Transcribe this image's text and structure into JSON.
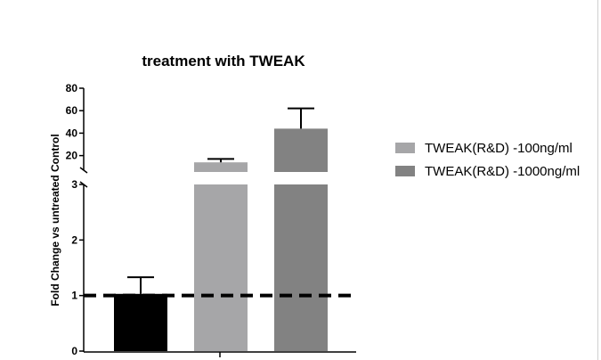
{
  "chart_data": {
    "type": "bar",
    "title": "treatment with TWEAK",
    "ylabel": "Fold Change vs untreated Control",
    "xlabel": "",
    "axis_break": true,
    "lower_ylim": [
      0,
      3
    ],
    "lower_ticks": [
      0,
      1,
      2,
      3
    ],
    "upper_ylim": [
      7,
      80
    ],
    "upper_ticks": [
      20,
      40,
      60,
      80
    ],
    "reference_line": {
      "y": 1,
      "style": "dashed"
    },
    "legend_position": "right",
    "bars": [
      {
        "name": "",
        "value": 1.03,
        "error": 0.3,
        "color": "#000000"
      },
      {
        "name": "TWEAK(R&D) -100ng/ml",
        "value": 14,
        "error": 3,
        "color": "#a6a6a8"
      },
      {
        "name": "TWEAK(R&D) -1000ng/ml",
        "value": 44,
        "error": 18,
        "color": "#828282"
      }
    ],
    "legend": [
      {
        "label": "TWEAK(R&D) -100ng/ml",
        "color": "#a6a6a8"
      },
      {
        "label": "TWEAK(R&D) -1000ng/ml",
        "color": "#828282"
      }
    ]
  }
}
